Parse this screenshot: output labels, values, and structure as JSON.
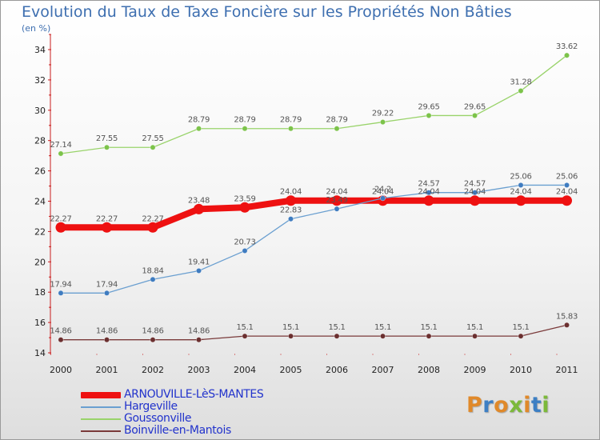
{
  "title": "Evolution du Taux de Taxe Foncière sur les Propriétés Non Bâties",
  "unit_label": "(en %)",
  "logo": {
    "letters": [
      "P",
      "r",
      "o",
      "x",
      "i",
      "t",
      "i"
    ],
    "colors": [
      "#e0892a",
      "#3d7fc4",
      "#e0892a",
      "#7cb93a",
      "#e0892a",
      "#3d7fc4",
      "#7cb93a"
    ]
  },
  "chart_data": {
    "type": "line",
    "title": "Evolution du Taux de Taxe Foncière sur les Propriétés Non Bâties",
    "ylabel": "(en %)",
    "xlabel": "",
    "x": [
      "2000",
      "2001",
      "2002",
      "2003",
      "2004",
      "2005",
      "2006",
      "2007",
      "2008",
      "2009",
      "2010",
      "2011"
    ],
    "ylim": [
      14,
      35
    ],
    "yticks": [
      14,
      16,
      18,
      20,
      22,
      24,
      26,
      28,
      30,
      32,
      34
    ],
    "grid": false,
    "legend_position": "bottom-left",
    "series": [
      {
        "name": "ARNOUVILLE-LèS-MANTES",
        "color": "#ee1111",
        "thick": true,
        "values": [
          22.27,
          22.27,
          22.27,
          23.48,
          23.59,
          24.04,
          24.04,
          24.04,
          24.04,
          24.04,
          24.04,
          24.04
        ],
        "labels": [
          "22.27",
          "22.27",
          "22.27",
          "23.48",
          "23.59",
          "24.04",
          "24.04",
          "24.04",
          "24.04",
          "24.04",
          "24.04",
          "24.04"
        ]
      },
      {
        "name": "Hargeville",
        "color": "#6a9fd0",
        "marker": "#3f7cc0",
        "values": [
          17.94,
          17.94,
          18.84,
          19.41,
          20.73,
          22.83,
          23.49,
          24.2,
          24.57,
          24.57,
          25.06,
          25.06
        ],
        "labels": [
          "17.94",
          "17.94",
          "18.84",
          "19.41",
          "20.73",
          "22.83",
          "23.49",
          "24.2",
          "24.57",
          "24.57",
          "25.06",
          "25.06"
        ]
      },
      {
        "name": "Goussonville",
        "color": "#99d36a",
        "marker": "#7cc34a",
        "values": [
          27.14,
          27.55,
          27.55,
          28.79,
          28.79,
          28.79,
          28.79,
          29.22,
          29.65,
          29.65,
          31.28,
          33.62
        ],
        "labels": [
          "27.14",
          "27.55",
          "27.55",
          "28.79",
          "28.79",
          "28.79",
          "28.79",
          "29.22",
          "29.65",
          "29.65",
          "31.28",
          "33.62"
        ]
      },
      {
        "name": "Boinville-en-Mantois",
        "color": "#7a3a3a",
        "marker": "#6b2f2f",
        "values": [
          14.86,
          14.86,
          14.86,
          14.86,
          15.1,
          15.1,
          15.1,
          15.1,
          15.1,
          15.1,
          15.1,
          15.83
        ],
        "labels": [
          "14.86",
          "14.86",
          "14.86",
          "14.86",
          "15.1",
          "15.1",
          "15.1",
          "15.1",
          "15.1",
          "15.1",
          "15.1",
          "15.83"
        ]
      }
    ]
  }
}
